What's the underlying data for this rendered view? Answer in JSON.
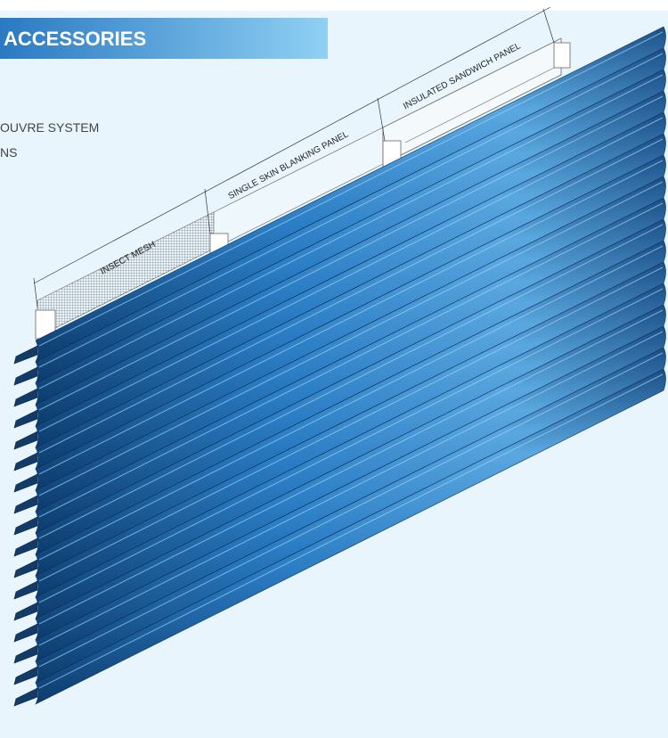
{
  "header": {
    "title": "ACCESSORIES",
    "lines": [
      "OUVRE SYSTEM",
      "NS"
    ]
  },
  "labels": [
    "INSECT MESH",
    "SINGLE SKIN BLANKING PANEL",
    "INSULATED SANDWICH PANEL"
  ]
}
